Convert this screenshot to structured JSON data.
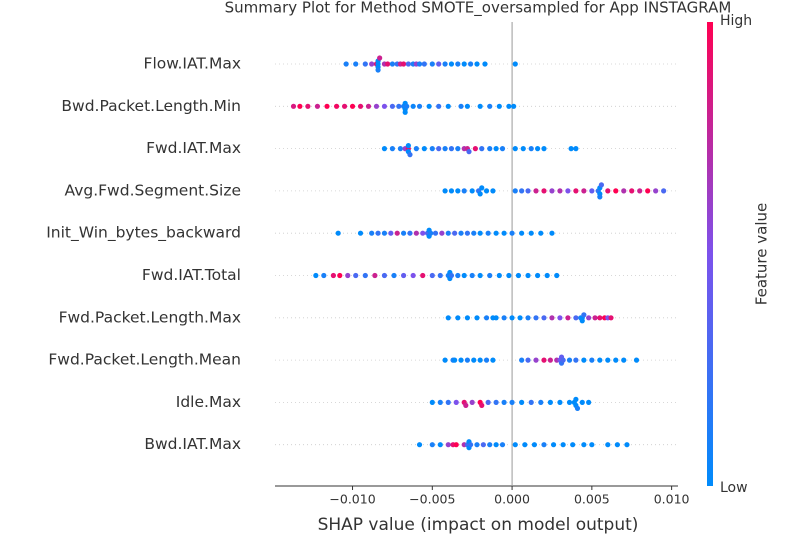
{
  "chart_data": {
    "type": "beeswarm",
    "title": "Summary Plot for Method SMOTE_oversampled for App INSTAGRAM",
    "xlabel": "SHAP value (impact on model output)",
    "xlim": [
      -0.01486,
      0.0104
    ],
    "xticks": [
      {
        "value": -0.01,
        "label": "−0.010"
      },
      {
        "value": -0.005,
        "label": "−0.005"
      },
      {
        "value": 0,
        "label": "0.000"
      },
      {
        "value": 0.005,
        "label": "0.005"
      },
      {
        "value": 0.01,
        "label": "0.010"
      }
    ],
    "zero_line": 0,
    "categories": [
      "Flow.IAT.Max",
      "Bwd.Packet.Length.Min",
      "Fwd.IAT.Max",
      "Avg.Fwd.Segment.Size",
      "Init_Win_bytes_backward",
      "Fwd.IAT.Total",
      "Fwd.Packet.Length.Max",
      "Fwd.Packet.Length.Mean",
      "Idle.Max",
      "Bwd.IAT.Max"
    ],
    "rows": [
      {
        "shap_values": [
          -0.0104,
          -0.0098,
          -0.0092,
          -0.0088,
          -0.0085,
          -0.0084,
          -0.0084,
          -0.0084,
          -0.0084,
          -0.0083,
          -0.008,
          -0.0078,
          -0.0075,
          -0.0072,
          -0.007,
          -0.0068,
          -0.0065,
          -0.0062,
          -0.006,
          -0.0058,
          -0.0055,
          -0.005,
          -0.0046,
          -0.0042,
          -0.0038,
          -0.0034,
          -0.003,
          -0.0026,
          -0.0022,
          -0.0017,
          0.0002
        ],
        "feature_values": [
          0.1,
          0.1,
          0.2,
          0.6,
          0.9,
          0,
          0,
          0,
          0.1,
          0.8,
          0.7,
          0.9,
          0.1,
          0.2,
          0.8,
          0.9,
          0.3,
          0.1,
          0.6,
          0.1,
          0.2,
          0.1,
          0.4,
          0.1,
          0,
          0.1,
          0,
          0.1,
          0,
          0,
          0
        ]
      },
      {
        "shap_values": [
          -0.0137,
          -0.0133,
          -0.0128,
          -0.0122,
          -0.0116,
          -0.011,
          -0.0105,
          -0.01,
          -0.0095,
          -0.009,
          -0.0085,
          -0.008,
          -0.0075,
          -0.0071,
          -0.0068,
          -0.0067,
          -0.0067,
          -0.0067,
          -0.0066,
          -0.0062,
          -0.0058,
          -0.0052,
          -0.0046,
          -0.004,
          -0.0032,
          -0.0028,
          -0.002,
          -0.0014,
          -0.0008,
          -0.0002,
          0.0001
        ],
        "feature_values": [
          0.85,
          1,
          0.9,
          0.8,
          1,
          0.95,
          0.9,
          1,
          0.9,
          0.8,
          0.6,
          0.5,
          0.3,
          0.2,
          0.1,
          0,
          0,
          0,
          0.1,
          0.05,
          0.1,
          0,
          0.2,
          0,
          0.1,
          0,
          0,
          0.1,
          0,
          0,
          0
        ]
      },
      {
        "shap_values": [
          -0.008,
          -0.0075,
          -0.007,
          -0.0067,
          -0.0065,
          -0.0065,
          -0.0065,
          -0.0064,
          -0.006,
          -0.0055,
          -0.005,
          -0.0046,
          -0.0042,
          -0.0038,
          -0.0034,
          -0.003,
          -0.0028,
          -0.0027,
          -0.0023,
          -0.0019,
          -0.0014,
          -0.001,
          -0.0006,
          0.0002,
          0.0007,
          0.0012,
          0.0016,
          0.002,
          0.0037,
          0.004
        ],
        "feature_values": [
          0,
          0.1,
          0.1,
          0.6,
          0.9,
          0,
          0,
          0.2,
          0.1,
          0,
          0.1,
          0.3,
          0.1,
          0.2,
          0.1,
          0.7,
          0.8,
          0.3,
          0.9,
          0.2,
          0.1,
          0,
          0.1,
          0,
          0,
          0.1,
          0,
          0,
          0,
          0
        ]
      },
      {
        "shap_values": [
          -0.0042,
          -0.0038,
          -0.0034,
          -0.003,
          -0.0025,
          -0.0021,
          -0.002,
          -0.0019,
          -0.0016,
          -0.0012,
          0.0002,
          0.0006,
          0.001,
          0.0015,
          0.002,
          0.0025,
          0.003,
          0.0035,
          0.004,
          0.0045,
          0.005,
          0.0054,
          0.0055,
          0.0055,
          0.0055,
          0.0056,
          0.006,
          0.0065,
          0.007,
          0.0075,
          0.008,
          0.0085,
          0.009,
          0.0095
        ],
        "feature_values": [
          0,
          0,
          0,
          0.1,
          0,
          0.2,
          0,
          0,
          0,
          0,
          0.1,
          0.2,
          0.3,
          0.8,
          0.9,
          0.6,
          0.7,
          0.5,
          0.9,
          0.8,
          0.4,
          0.2,
          0,
          0,
          0.1,
          0.3,
          0.9,
          1,
          0.7,
          0.9,
          0.8,
          1,
          0.6,
          0.3
        ]
      },
      {
        "shap_values": [
          -0.0109,
          -0.0095,
          -0.0088,
          -0.0084,
          -0.008,
          -0.0076,
          -0.0072,
          -0.0068,
          -0.0064,
          -0.006,
          -0.0056,
          -0.0053,
          -0.0052,
          -0.0052,
          -0.0051,
          -0.0048,
          -0.0044,
          -0.004,
          -0.0036,
          -0.0032,
          -0.0028,
          -0.0024,
          -0.002,
          -0.0015,
          -0.001,
          -0.0005,
          0,
          0.0006,
          0.0012,
          0.0018,
          0.0025
        ],
        "feature_values": [
          0,
          0,
          0.1,
          0.2,
          0.1,
          0.4,
          0.8,
          0.1,
          0.2,
          0.7,
          0.5,
          0.3,
          0,
          0,
          0.1,
          0.2,
          0.6,
          0.1,
          0.3,
          0.1,
          0.2,
          0.1,
          0,
          0.1,
          0,
          0,
          0.1,
          0,
          0,
          0,
          0
        ]
      },
      {
        "shap_values": [
          -0.0123,
          -0.0118,
          -0.0112,
          -0.0108,
          -0.0103,
          -0.0098,
          -0.0092,
          -0.0086,
          -0.008,
          -0.0074,
          -0.0068,
          -0.0062,
          -0.0056,
          -0.005,
          -0.0045,
          -0.004,
          -0.0039,
          -0.0039,
          -0.0038,
          -0.0034,
          -0.003,
          -0.0025,
          -0.002,
          -0.0014,
          -0.0008,
          -0.0002,
          0.0004,
          0.001,
          0.0016,
          0.0022,
          0.0028
        ],
        "feature_values": [
          0,
          0.1,
          0.9,
          1,
          0.6,
          0.3,
          0.2,
          0.8,
          0.3,
          0.1,
          0.4,
          0.5,
          0.9,
          0.3,
          0.2,
          0.1,
          0,
          0,
          0.2,
          0.1,
          0,
          0.1,
          0,
          0.1,
          0,
          0,
          0,
          0,
          0,
          0,
          0
        ]
      },
      {
        "shap_values": [
          -0.004,
          -0.0034,
          -0.0028,
          -0.0022,
          -0.0016,
          -0.0012,
          -0.001,
          -0.0005,
          0,
          0.0005,
          0.001,
          0.0015,
          0.002,
          0.0025,
          0.003,
          0.0035,
          0.004,
          0.0043,
          0.0044,
          0.0044,
          0.0045,
          0.0048,
          0.0052,
          0.0055,
          0.0058,
          0.006,
          0.0062
        ],
        "feature_values": [
          0,
          0,
          0,
          0,
          0.1,
          0,
          0,
          0.1,
          0,
          0,
          0.1,
          0.2,
          0.3,
          0.7,
          0.5,
          0.8,
          0.3,
          0.1,
          0,
          0,
          0.2,
          0.6,
          0.8,
          0.9,
          1,
          0.5,
          0.9
        ]
      },
      {
        "shap_values": [
          -0.0042,
          -0.0037,
          -0.0036,
          -0.0032,
          -0.0028,
          -0.0024,
          -0.002,
          -0.0016,
          -0.0012,
          0.0006,
          0.001,
          0.0015,
          0.002,
          0.0024,
          0.0028,
          0.003,
          0.0031,
          0.0031,
          0.0032,
          0.0036,
          0.004,
          0.0045,
          0.005,
          0.0055,
          0.006,
          0.0065,
          0.007,
          0.0078
        ],
        "feature_values": [
          0,
          0.1,
          0,
          0,
          0.1,
          0,
          0,
          0.1,
          0,
          0.1,
          0.3,
          0.6,
          0.9,
          0.8,
          0.7,
          0.5,
          0.2,
          0.4,
          0.3,
          0.1,
          0.2,
          0,
          0.1,
          0,
          0,
          0,
          0,
          0
        ]
      },
      {
        "shap_values": [
          -0.005,
          -0.0045,
          -0.004,
          -0.0035,
          -0.003,
          -0.0029,
          -0.0025,
          -0.002,
          -0.0019,
          -0.0015,
          -0.001,
          -0.0005,
          0,
          0.0006,
          0.0012,
          0.0018,
          0.0024,
          0.003,
          0.0036,
          0.0039,
          0.004,
          0.004,
          0.0041,
          0.0044,
          0.0048
        ],
        "feature_values": [
          0,
          0.1,
          0.2,
          0.5,
          0.9,
          0.8,
          0.6,
          1,
          0.9,
          0.3,
          0.2,
          0.1,
          0.1,
          0,
          0.2,
          0.1,
          0,
          0,
          0,
          0,
          0,
          0,
          0.1,
          0,
          0
        ]
      },
      {
        "shap_values": [
          -0.0058,
          -0.005,
          -0.0045,
          -0.004,
          -0.0037,
          -0.0035,
          -0.003,
          -0.0028,
          -0.0027,
          -0.0027,
          -0.0026,
          -0.0022,
          -0.0018,
          -0.0014,
          -0.001,
          -0.0006,
          0.0002,
          0.0008,
          0.0014,
          0.002,
          0.0026,
          0.0032,
          0.0038,
          0.0045,
          0.005,
          0.006,
          0.0066,
          0.0072
        ],
        "feature_values": [
          0,
          0.1,
          0,
          0.6,
          0.9,
          1,
          0.7,
          0.3,
          0,
          0,
          0.2,
          0.1,
          0.3,
          0.1,
          0,
          0.1,
          0,
          0,
          0,
          0.1,
          0,
          0,
          0,
          0,
          0,
          0,
          0,
          0
        ]
      }
    ],
    "colorbar": {
      "label": "Feature value",
      "high_label": "High",
      "low_label": "Low",
      "colors": [
        "#008bfb",
        "#7c52ec",
        "#ff0052"
      ]
    },
    "grid": true
  }
}
